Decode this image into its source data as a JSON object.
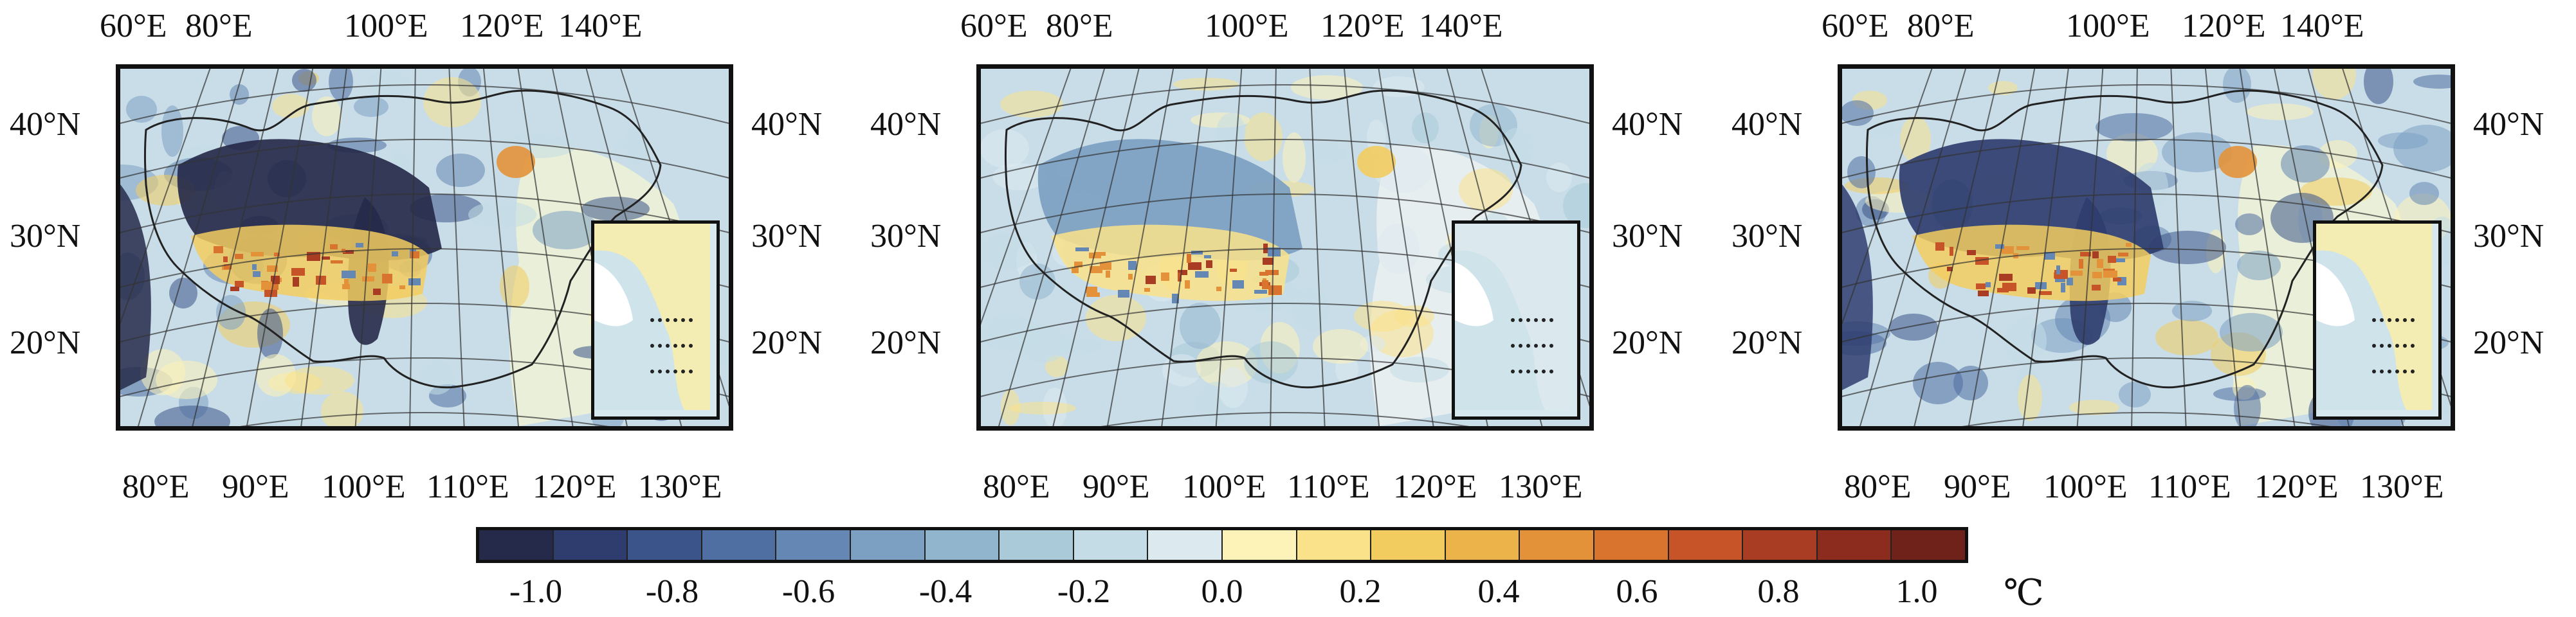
{
  "maps": [
    {
      "id": "left",
      "top_lon_labels": [
        "60°E",
        "80°E",
        "100°E",
        "120°E",
        "140°E"
      ],
      "bottom_lon_labels": [
        "80°E",
        "90°E",
        "100°E",
        "110°E",
        "120°E",
        "130°E"
      ],
      "lat_labels": [
        "40°N",
        "30°N",
        "20°N"
      ],
      "pattern": "strong-negative"
    },
    {
      "id": "middle",
      "top_lon_labels": [
        "60°E",
        "80°E",
        "100°E",
        "120°E",
        "140°E"
      ],
      "bottom_lon_labels": [
        "80°E",
        "90°E",
        "100°E",
        "110°E",
        "120°E",
        "130°E"
      ],
      "lat_labels": [
        "40°N",
        "30°N",
        "20°N"
      ],
      "pattern": "weak"
    },
    {
      "id": "right",
      "top_lon_labels": [
        "60°E",
        "80°E",
        "100°E",
        "120°E",
        "140°E"
      ],
      "bottom_lon_labels": [
        "80°E",
        "90°E",
        "100°E",
        "110°E",
        "120°E",
        "130°E"
      ],
      "lat_labels": [
        "40°N",
        "30°N",
        "20°N"
      ],
      "pattern": "moderate-negative"
    }
  ],
  "colorbar": {
    "colors": [
      "#262a4a",
      "#2f3d6e",
      "#3b5489",
      "#4f6ea2",
      "#6587b3",
      "#7ca0c2",
      "#92b5ce",
      "#aacad9",
      "#c3dce6",
      "#dceaf0",
      "#fdf3b8",
      "#fae28a",
      "#f3cc5f",
      "#ecb34a",
      "#e3923a",
      "#d8742e",
      "#c65428",
      "#a93d23",
      "#8c2c1f",
      "#6f2219"
    ],
    "tick_labels": [
      "-1.0",
      "-0.8",
      "-0.6",
      "-0.4",
      "-0.2",
      "0.0",
      "0.2",
      "0.4",
      "0.6",
      "0.8",
      "1.0"
    ],
    "unit": "℃"
  }
}
